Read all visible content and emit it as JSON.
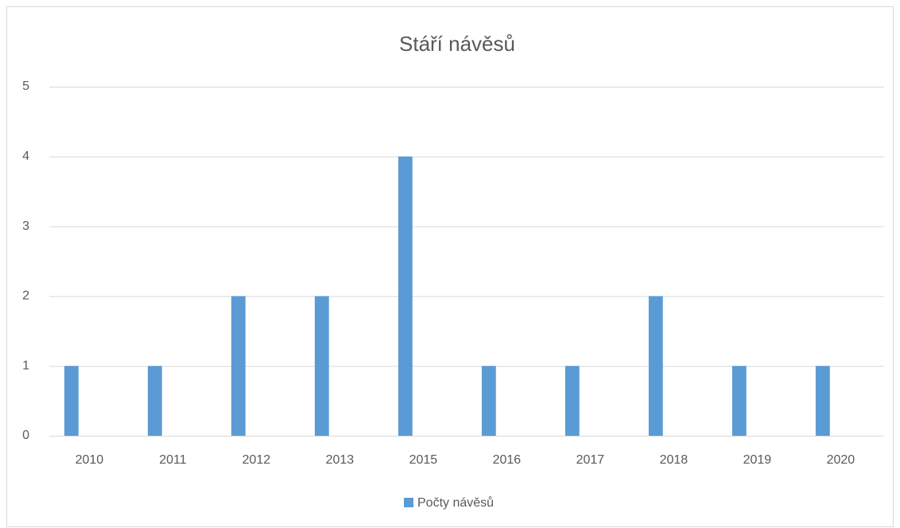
{
  "chart_data": {
    "type": "bar",
    "title": "Stáří návěsů",
    "categories": [
      "2010",
      "2011",
      "2012",
      "2013",
      "2015",
      "2016",
      "2017",
      "2018",
      "2019",
      "2020"
    ],
    "series": [
      {
        "name": "Počty návěsů",
        "color": "#5b9bd5",
        "values": [
          1,
          1,
          2,
          2,
          4,
          1,
          1,
          2,
          1,
          1
        ]
      }
    ],
    "ylim": [
      0,
      5
    ],
    "yticks": [
      0,
      1,
      2,
      3,
      4,
      5
    ],
    "grid": true,
    "legend": "bottom"
  }
}
